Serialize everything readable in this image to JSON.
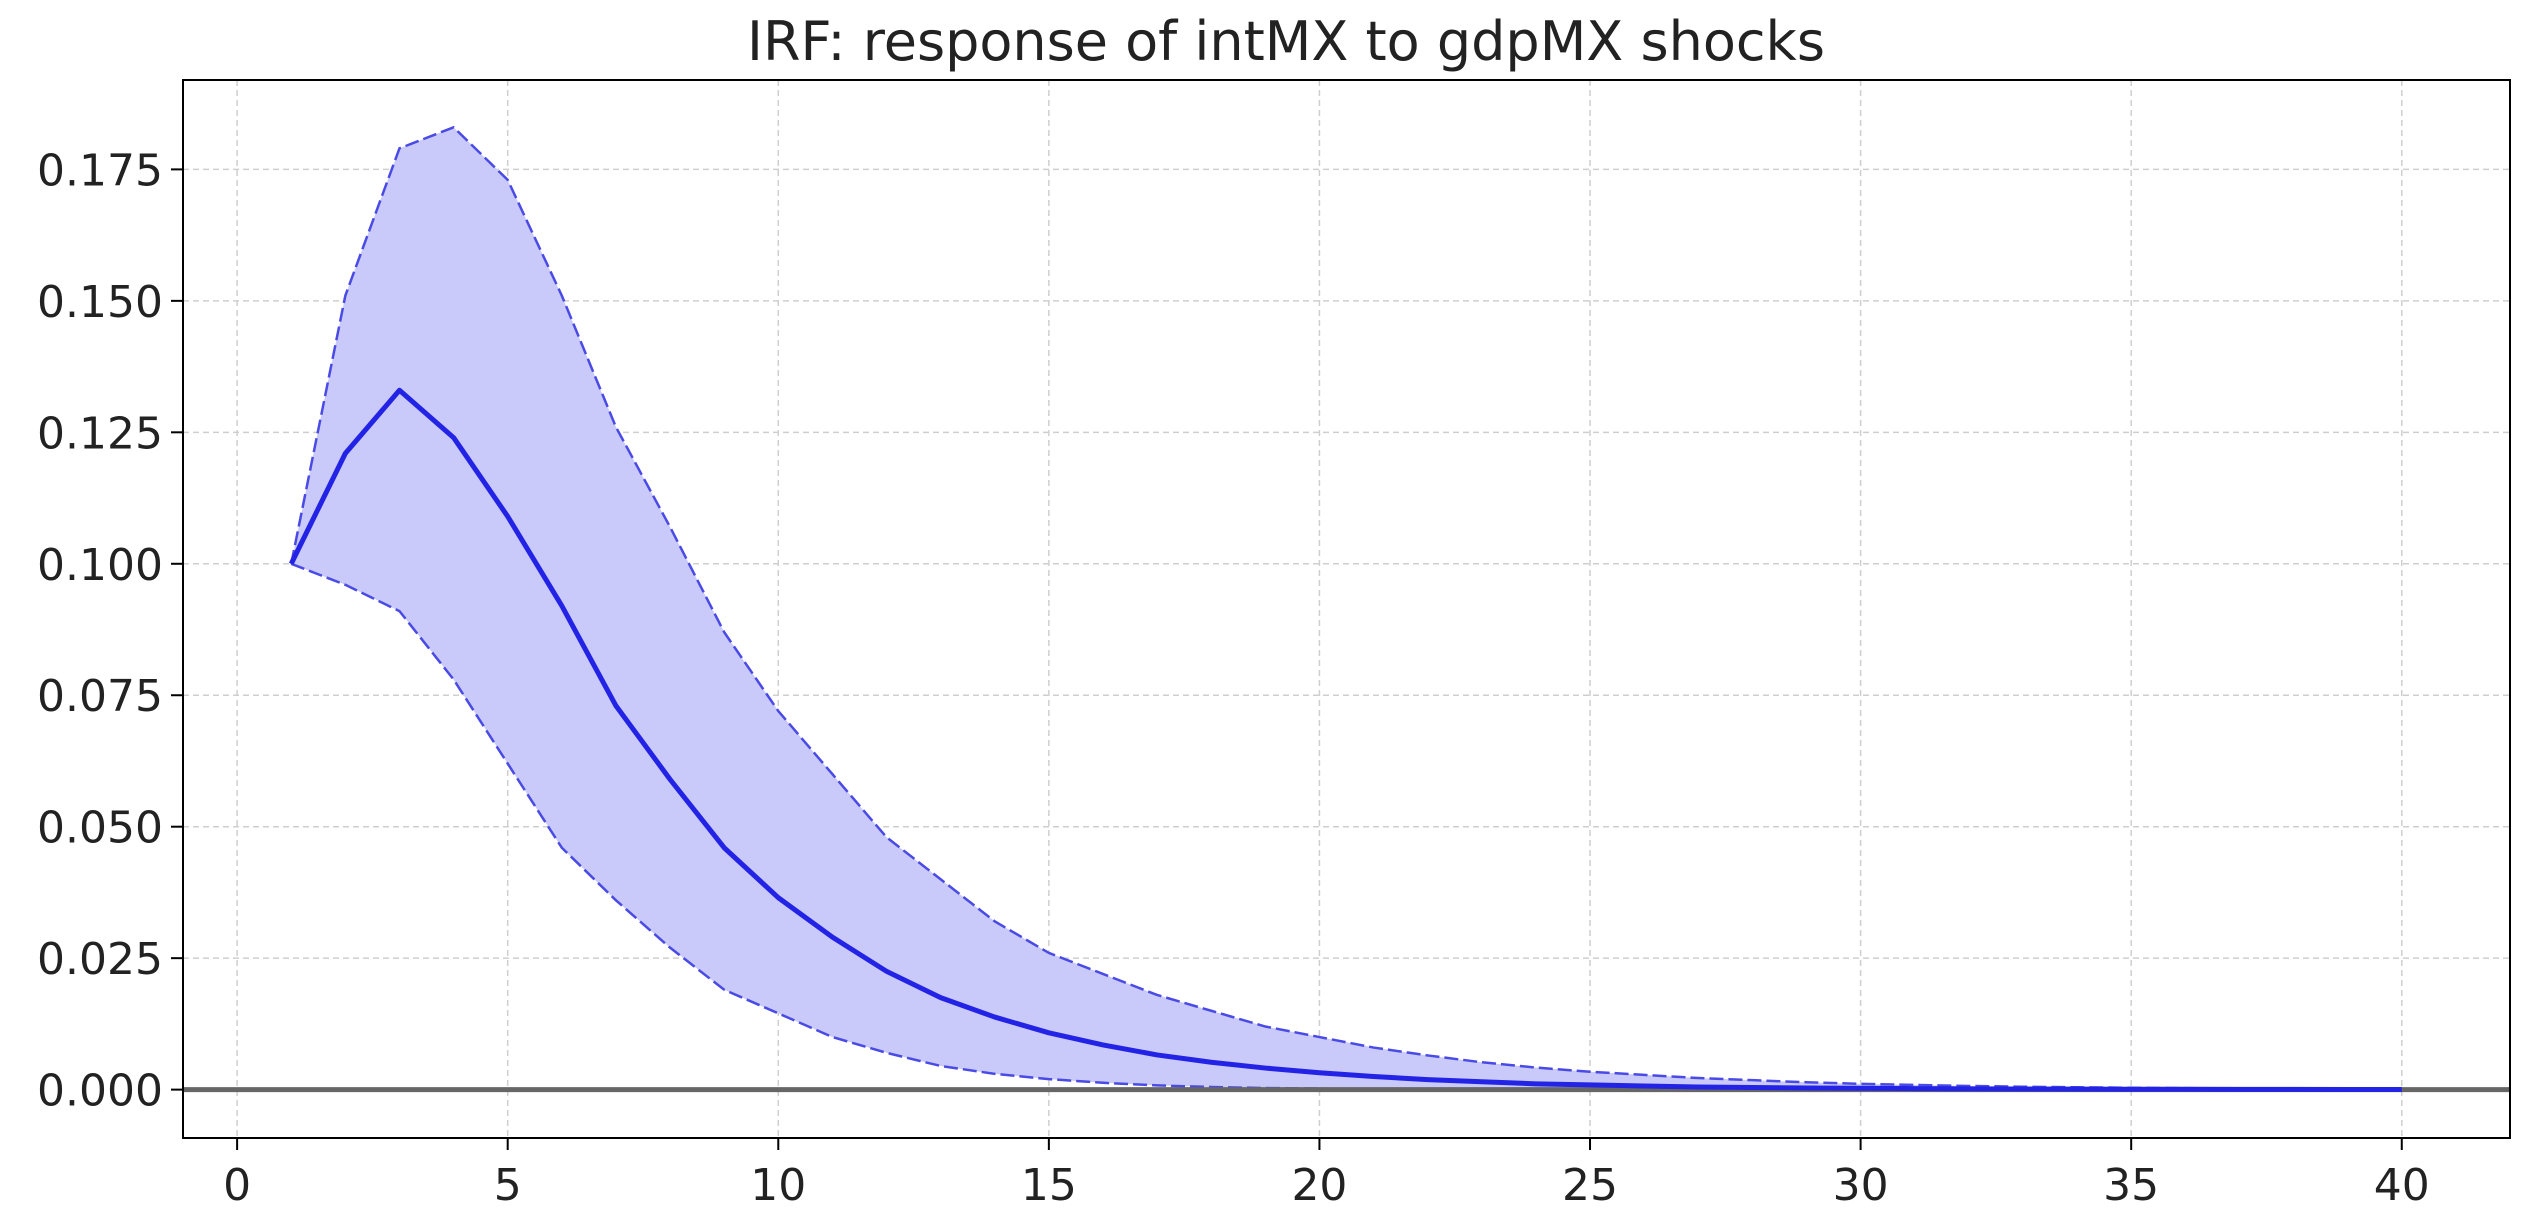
{
  "chart_data": {
    "type": "line",
    "title": "IRF: response of intMX to gdpMX shocks",
    "xlabel": "",
    "ylabel": "",
    "xlim": [
      -1,
      42
    ],
    "ylim": [
      -0.0092,
      0.192
    ],
    "xticks": [
      0,
      5,
      10,
      15,
      20,
      25,
      30,
      35,
      40
    ],
    "xtick_labels": [
      "0",
      "5",
      "10",
      "15",
      "20",
      "25",
      "30",
      "35",
      "40"
    ],
    "yticks": [
      0.0,
      0.025,
      0.05,
      0.075,
      0.1,
      0.125,
      0.15,
      0.175
    ],
    "ytick_labels": [
      "0.000",
      "0.025",
      "0.050",
      "0.075",
      "0.100",
      "0.125",
      "0.150",
      "0.175"
    ],
    "grid": true,
    "legend": "none",
    "colors": {
      "line": "#2323e6",
      "band_fill": "#c9c9fa",
      "band_edge": "#4a4ae6",
      "zero_line": "#666666",
      "grid": "#cfcfcf"
    },
    "x": [
      1,
      2,
      3,
      4,
      5,
      6,
      7,
      8,
      9,
      10,
      11,
      12,
      13,
      14,
      15,
      16,
      17,
      18,
      19,
      20,
      21,
      22,
      23,
      24,
      25,
      26,
      27,
      28,
      29,
      30,
      31,
      32,
      33,
      34,
      35,
      36,
      37,
      38,
      39,
      40
    ],
    "series": [
      {
        "role": "point estimate",
        "values": [
          0.1,
          0.121,
          0.133,
          0.124,
          0.109,
          0.092,
          0.073,
          0.059,
          0.046,
          0.0365,
          0.029,
          0.0225,
          0.0175,
          0.0138,
          0.0108,
          0.0085,
          0.0066,
          0.0052,
          0.0041,
          0.0032,
          0.0025,
          0.0019,
          0.0015,
          0.0011,
          0.0009,
          0.0007,
          0.0005,
          0.0004,
          0.0003,
          0.00025,
          0.0002,
          0.00015,
          0.00012,
          0.0001,
          8e-05,
          6e-05,
          5e-05,
          4e-05,
          3e-05,
          2e-05
        ]
      },
      {
        "role": "upper bound",
        "values": [
          0.1,
          0.151,
          0.179,
          0.183,
          0.173,
          0.151,
          0.126,
          0.107,
          0.087,
          0.072,
          0.06,
          0.048,
          0.04,
          0.032,
          0.026,
          0.022,
          0.018,
          0.015,
          0.012,
          0.01,
          0.008,
          0.0065,
          0.0052,
          0.0042,
          0.0034,
          0.0028,
          0.0022,
          0.0018,
          0.0014,
          0.0011,
          0.0009,
          0.0007,
          0.00055,
          0.00045,
          0.00035,
          0.00028,
          0.00022,
          0.00017,
          0.00013,
          0.0001
        ]
      },
      {
        "role": "lower bound",
        "values": [
          0.1,
          0.096,
          0.091,
          0.078,
          0.062,
          0.046,
          0.036,
          0.027,
          0.019,
          0.0145,
          0.01,
          0.007,
          0.0045,
          0.003,
          0.002,
          0.0013,
          0.0008,
          0.0005,
          0.0003,
          0.0002,
          0.0001,
          5e-05,
          2e-05,
          1e-05,
          0,
          0,
          0,
          0,
          0,
          0,
          0,
          0,
          0,
          0,
          0,
          0,
          0,
          0,
          0,
          0
        ]
      }
    ]
  }
}
